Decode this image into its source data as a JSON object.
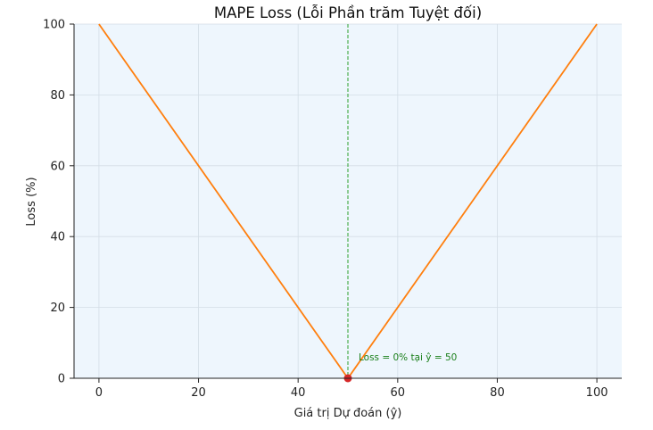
{
  "chart_data": {
    "type": "line",
    "title": "MAPE Loss (Lỗi Phần trăm Tuyệt đối)",
    "xlabel": "Giá trị Dự đoán (ŷ)",
    "ylabel": "Loss (%)",
    "xlim": [
      -5,
      105
    ],
    "ylim": [
      0,
      100
    ],
    "xticks": [
      0,
      20,
      40,
      60,
      80,
      100
    ],
    "yticks": [
      0,
      20,
      40,
      60,
      80,
      100
    ],
    "grid": true,
    "series": [
      {
        "color": "#ff7f0e",
        "x": [
          0,
          50,
          100
        ],
        "y": [
          100,
          0,
          100
        ]
      }
    ],
    "vline": {
      "x": 50,
      "color": "#2ca02c",
      "style": "dashed"
    },
    "minimum_point": {
      "x": 50,
      "y": 0,
      "color": "#d62728"
    },
    "annotation": {
      "text": "Loss = 0% tại ŷ = 50",
      "x": 50,
      "y": 0,
      "color": "#1a7f1a"
    },
    "colors": {
      "plot_background": "#eef6fd",
      "grid": "#d4dde6",
      "axis": "#222222"
    }
  }
}
